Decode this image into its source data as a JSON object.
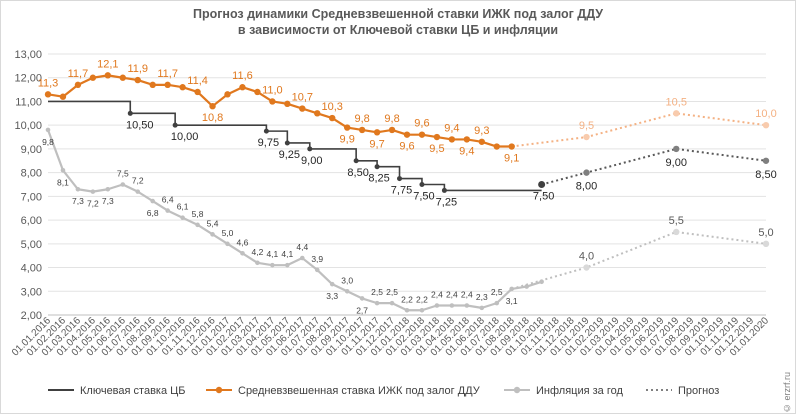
{
  "chart_data": {
    "type": "line",
    "title": "Прогноз динамики Средневзвешенной ставки ИЖК под залог ДДУ",
    "subtitle": "в зависимости от Ключевой ставки ЦБ и инфляции",
    "ylim": [
      2,
      13
    ],
    "y_ticks": [
      "2,00",
      "3,00",
      "4,00",
      "5,00",
      "6,00",
      "7,00",
      "8,00",
      "9,00",
      "10,00",
      "11,00",
      "12,00",
      "13,00"
    ],
    "x_labels": [
      "01.01.2016",
      "01.02.2016",
      "01.03.2016",
      "01.04.2016",
      "01.05.2016",
      "01.06.2016",
      "01.07.2016",
      "01.08.2016",
      "01.09.2016",
      "01.10.2016",
      "01.11.2016",
      "01.12.2016",
      "01.01.2017",
      "01.02.2017",
      "01.03.2017",
      "01.04.2017",
      "01.05.2017",
      "01.06.2017",
      "01.07.2017",
      "01.08.2017",
      "01.09.2017",
      "01.10.2017",
      "01.11.2017",
      "01.12.2017",
      "01.01.2018",
      "01.02.2018",
      "01.03.2018",
      "01.04.2018",
      "01.05.2018",
      "01.06.2018",
      "01.07.2018",
      "01.08.2018",
      "01.09.2018",
      "01.10.2018",
      "01.11.2018",
      "01.12.2018",
      "01.01.2019",
      "01.02.2019",
      "01.03.2019",
      "01.04.2019",
      "01.05.2019",
      "01.06.2019",
      "01.07.2019",
      "01.08.2019",
      "01.09.2019",
      "01.10.2019",
      "01.11.2019",
      "01.12.2019",
      "01.01.2020"
    ],
    "grid": true,
    "legend_position": "bottom",
    "series": [
      {
        "name": "Ключевая ставка ЦБ",
        "color": "#404040",
        "style": "step",
        "steps": [
          [
            0,
            11.0
          ],
          [
            5.5,
            10.5
          ],
          [
            8.5,
            10.0
          ],
          [
            14.6,
            9.75
          ],
          [
            16.0,
            9.25
          ],
          [
            17.5,
            9.0
          ],
          [
            20.6,
            8.5
          ],
          [
            22.0,
            8.25
          ],
          [
            23.5,
            7.75
          ],
          [
            25.0,
            7.5
          ],
          [
            26.5,
            7.25
          ]
        ],
        "end_x": 33,
        "labels": [
          {
            "x": 6.0,
            "y": 10.5,
            "text": "10,50"
          },
          {
            "x": 9.0,
            "y": 10.0,
            "text": "10,00"
          },
          {
            "x": 14.6,
            "y": 9.75,
            "text": "9,75"
          },
          {
            "x": 16.0,
            "y": 9.25,
            "text": "9,25"
          },
          {
            "x": 17.5,
            "y": 9.0,
            "text": "9,00"
          },
          {
            "x": 20.6,
            "y": 8.5,
            "text": "8,50"
          },
          {
            "x": 22.0,
            "y": 8.25,
            "text": "8,25"
          },
          {
            "x": 23.5,
            "y": 7.75,
            "text": "7,75"
          },
          {
            "x": 25.0,
            "y": 7.5,
            "text": "7,50"
          },
          {
            "x": 26.5,
            "y": 7.25,
            "text": "7,25"
          },
          {
            "x": 33,
            "y": 7.5,
            "text": "7,50"
          }
        ]
      },
      {
        "name": "Средневзвешенная ставка ИЖК под залог ДДУ",
        "color": "#e0781e",
        "x": [
          0,
          1,
          2,
          3,
          4,
          5,
          6,
          7,
          8,
          9,
          10,
          11,
          12,
          13,
          14,
          15,
          16,
          17,
          18,
          19,
          20,
          21,
          22,
          23,
          24,
          25,
          26,
          27,
          28,
          29,
          30,
          31
        ],
        "values": [
          11.3,
          11.2,
          11.7,
          12.0,
          12.1,
          12.0,
          11.9,
          11.7,
          11.7,
          11.6,
          11.4,
          10.8,
          11.3,
          11.6,
          11.4,
          11.0,
          10.9,
          10.7,
          10.5,
          10.3,
          9.9,
          9.8,
          9.7,
          9.8,
          9.6,
          9.6,
          9.5,
          9.4,
          9.4,
          9.3,
          9.1,
          9.1
        ],
        "labels": [
          {
            "i": 0,
            "text": "11,3",
            "pos": "above"
          },
          {
            "i": 2,
            "text": "11,7",
            "pos": "above"
          },
          {
            "i": 4,
            "text": "12,1",
            "pos": "above"
          },
          {
            "i": 6,
            "text": "11,9",
            "pos": "above"
          },
          {
            "i": 8,
            "text": "11,7",
            "pos": "above"
          },
          {
            "i": 10,
            "text": "11,4",
            "pos": "above"
          },
          {
            "i": 11,
            "text": "10,8",
            "pos": "below"
          },
          {
            "i": 13,
            "text": "11,6",
            "pos": "above"
          },
          {
            "i": 15,
            "text": "11,0",
            "pos": "above"
          },
          {
            "i": 17,
            "text": "10,7",
            "pos": "above"
          },
          {
            "i": 19,
            "text": "10,3",
            "pos": "above"
          },
          {
            "i": 20,
            "text": "9,9",
            "pos": "below"
          },
          {
            "i": 21,
            "text": "9,8",
            "pos": "above"
          },
          {
            "i": 22,
            "text": "9,7",
            "pos": "below"
          },
          {
            "i": 23,
            "text": "9,8",
            "pos": "above"
          },
          {
            "i": 24,
            "text": "9,6",
            "pos": "below"
          },
          {
            "i": 25,
            "text": "9,6",
            "pos": "above"
          },
          {
            "i": 26,
            "text": "9,5",
            "pos": "below"
          },
          {
            "i": 27,
            "text": "9,4",
            "pos": "above"
          },
          {
            "i": 28,
            "text": "9,4",
            "pos": "below"
          },
          {
            "i": 29,
            "text": "9,3",
            "pos": "above"
          },
          {
            "i": 31,
            "text": "9,1",
            "pos": "below"
          }
        ]
      },
      {
        "name": "Инфляция за год",
        "color": "#bfbfbf",
        "x": [
          0,
          1,
          2,
          3,
          4,
          5,
          6,
          7,
          8,
          9,
          10,
          11,
          12,
          13,
          14,
          15,
          16,
          17,
          18,
          19,
          20,
          21,
          22,
          23,
          24,
          25,
          26,
          27,
          28,
          29,
          30,
          31,
          32,
          33
        ],
        "values": [
          9.8,
          8.1,
          7.3,
          7.2,
          7.3,
          7.5,
          7.2,
          6.8,
          6.4,
          6.1,
          5.8,
          5.4,
          5.0,
          4.6,
          4.2,
          4.1,
          4.1,
          4.4,
          3.9,
          3.3,
          3.0,
          2.7,
          2.5,
          2.5,
          2.2,
          2.2,
          2.4,
          2.4,
          2.4,
          2.3,
          2.5,
          3.1,
          3.2,
          3.4
        ],
        "labels": [
          {
            "i": 0,
            "text": "9,8",
            "pos": "below"
          },
          {
            "i": 1,
            "text": "8,1",
            "pos": "below"
          },
          {
            "i": 2,
            "text": "7,3",
            "pos": "below"
          },
          {
            "i": 3,
            "text": "7,2",
            "pos": "below"
          },
          {
            "i": 4,
            "text": "7,3",
            "pos": "below"
          },
          {
            "i": 5,
            "text": "7,5",
            "pos": "above"
          },
          {
            "i": 6,
            "text": "7,2",
            "pos": "above"
          },
          {
            "i": 7,
            "text": "6,8",
            "pos": "below"
          },
          {
            "i": 8,
            "text": "6,4",
            "pos": "above"
          },
          {
            "i": 9,
            "text": "6,1",
            "pos": "above"
          },
          {
            "i": 10,
            "text": "5,8",
            "pos": "above"
          },
          {
            "i": 11,
            "text": "5,4",
            "pos": "above"
          },
          {
            "i": 12,
            "text": "5,0",
            "pos": "above"
          },
          {
            "i": 13,
            "text": "4,6",
            "pos": "above"
          },
          {
            "i": 14,
            "text": "4,2",
            "pos": "above"
          },
          {
            "i": 15,
            "text": "4,1",
            "pos": "above"
          },
          {
            "i": 16,
            "text": "4,1",
            "pos": "above"
          },
          {
            "i": 17,
            "text": "4,4",
            "pos": "above"
          },
          {
            "i": 18,
            "text": "3,9",
            "pos": "above"
          },
          {
            "i": 19,
            "text": "3,3",
            "pos": "below"
          },
          {
            "i": 20,
            "text": "3,0",
            "pos": "above"
          },
          {
            "i": 21,
            "text": "2,7",
            "pos": "below"
          },
          {
            "i": 22,
            "text": "2,5",
            "pos": "above"
          },
          {
            "i": 23,
            "text": "2,5",
            "pos": "above"
          },
          {
            "i": 24,
            "text": "2,2",
            "pos": "above"
          },
          {
            "i": 25,
            "text": "2,2",
            "pos": "above"
          },
          {
            "i": 26,
            "text": "2,4",
            "pos": "above"
          },
          {
            "i": 27,
            "text": "2,4",
            "pos": "above"
          },
          {
            "i": 28,
            "text": "2,4",
            "pos": "above"
          },
          {
            "i": 29,
            "text": "2,3",
            "pos": "above"
          },
          {
            "i": 30,
            "text": "2,5",
            "pos": "above"
          },
          {
            "i": 31,
            "text": "3,1",
            "pos": "below"
          }
        ]
      }
    ],
    "forecast": {
      "name": "Прогноз",
      "color": "#808080",
      "key_rate": {
        "x": [
          33,
          36,
          42,
          48
        ],
        "values": [
          7.5,
          8.0,
          9.0,
          8.5
        ],
        "labels": [
          {
            "i": 1,
            "text": "8,00"
          },
          {
            "i": 2,
            "text": "9,00"
          },
          {
            "i": 3,
            "text": "8,50"
          }
        ]
      },
      "mortgage_rate": {
        "x": [
          31,
          36,
          42,
          48
        ],
        "values": [
          9.1,
          9.5,
          10.5,
          10.0
        ],
        "labels": [
          {
            "i": 1,
            "text": "9,5"
          },
          {
            "i": 2,
            "text": "10,5"
          },
          {
            "i": 3,
            "text": "10,0"
          }
        ]
      },
      "inflation": {
        "x": [
          31,
          36,
          42,
          48
        ],
        "values": [
          3.1,
          4.0,
          5.5,
          5.0
        ],
        "labels": [
          {
            "i": 1,
            "text": "4,0"
          },
          {
            "i": 2,
            "text": "5,5"
          },
          {
            "i": 3,
            "text": "5,0"
          }
        ]
      }
    }
  },
  "watermark": "© erzrf.ru"
}
